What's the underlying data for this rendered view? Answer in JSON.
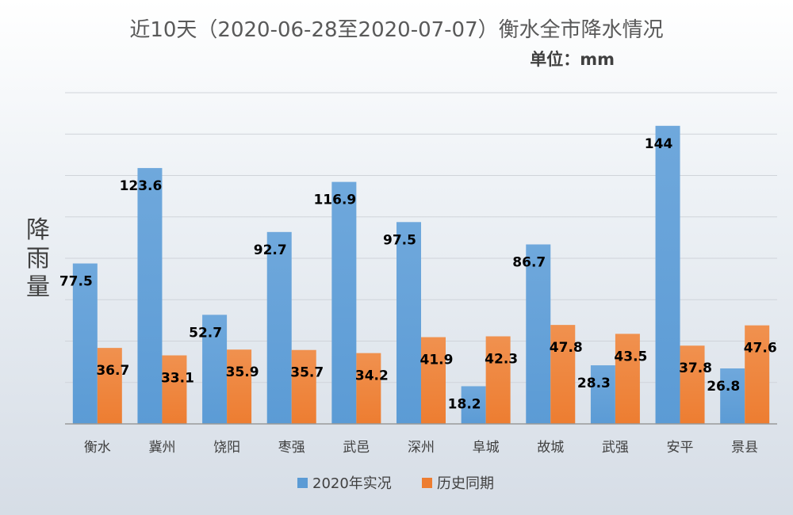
{
  "chart_data": {
    "type": "bar",
    "title": "近10天（2020-06-28至2020-07-07）衡水全市降水情况",
    "unit": "单位：mm",
    "ylabel": "降雨量",
    "xlabel": "",
    "categories": [
      "衡水",
      "冀州",
      "饶阳",
      "枣强",
      "武邑",
      "深州",
      "阜城",
      "故城",
      "武强",
      "安平",
      "景县"
    ],
    "series": [
      {
        "name": "2020年实况",
        "color": "#5B9BD5",
        "values": [
          77.5,
          123.6,
          52.7,
          92.7,
          116.9,
          97.5,
          18.2,
          86.7,
          28.3,
          144,
          26.8
        ]
      },
      {
        "name": "历史同期",
        "color": "#ED7D31",
        "values": [
          36.7,
          33.1,
          35.9,
          35.7,
          34.2,
          41.9,
          42.3,
          47.8,
          43.5,
          37.8,
          47.6
        ]
      }
    ],
    "ylim": [
      0,
      160
    ],
    "ytick_step": 20,
    "grid": true,
    "legend_position": "bottom"
  }
}
